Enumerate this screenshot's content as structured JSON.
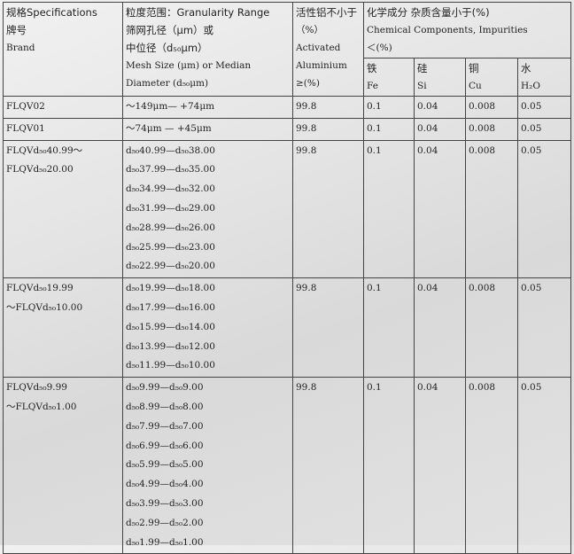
{
  "header": {
    "brand": [
      "规格Specifications",
      "牌号",
      "Brand"
    ],
    "granularity": [
      "粒度范围：Granularity Range",
      "筛网孔径（μm）或",
      "中位径（d₅₀μm）",
      "Mesh Size (μm) or Median",
      "Diameter (d₅₀μm)"
    ],
    "aluminium": [
      "活性铝不小于",
      "（%）",
      "Activated",
      "Aluminium",
      "≥(%)"
    ],
    "impurities": [
      "化学成分 杂质含量小于(%)",
      "Chemical Components, Impurities",
      "＜(%)"
    ],
    "elements": [
      [
        "铁",
        "Fe"
      ],
      [
        "硅",
        "Si"
      ],
      [
        "铜",
        "Cu"
      ],
      [
        "水",
        "H₂O"
      ]
    ]
  },
  "rows": [
    {
      "brand": [
        "FLQV02"
      ],
      "sizes": [
        "～149μm— +74μm"
      ],
      "aluminium": "99.8",
      "impurities": [
        "0.1",
        "0.04",
        "0.008",
        "0.05"
      ]
    },
    {
      "brand": [
        "FLQV01"
      ],
      "sizes": [
        "～74μm — +45μm"
      ],
      "aluminium": "99.8",
      "impurities": [
        "0.1",
        "0.04",
        "0.008",
        "0.05"
      ]
    },
    {
      "brand": [
        "FLQVd₅₀40.99～",
        "FLQVd₅₀20.00"
      ],
      "sizes": [
        "d₅₀40.99—d₅₀38.00",
        "d₅₀37.99—d₅₀35.00",
        "d₅₀34.99—d₅₀32.00",
        "d₅₀31.99—d₅₀29.00",
        "d₅₀28.99—d₅₀26.00",
        "d₅₀25.99—d₅₀23.00",
        "d₅₀22.99—d₅₀20.00"
      ],
      "aluminium": "99.8",
      "impurities": [
        "0.1",
        "0.04",
        "0.008",
        "0.05"
      ]
    },
    {
      "brand": [
        "FLQVd₅₀19.99",
        "～FLQVd₅₀10.00"
      ],
      "sizes": [
        "d₅₀19.99—d₅₀18.00",
        "d₅₀17.99—d₅₀16.00",
        "d₅₀15.99—d₅₀14.00",
        "d₅₀13.99—d₅₀12.00",
        "d₅₀11.99—d₅₀10.00"
      ],
      "aluminium": "99.8",
      "impurities": [
        "0.1",
        "0.04",
        "0.008",
        "0.05"
      ]
    },
    {
      "brand": [
        "FLQVd₅₀9.99",
        "～FLQVd₅₀1.00"
      ],
      "sizes": [
        "d₅₀9.99—d₅₀9.00",
        "d₅₀8.99—d₅₀8.00",
        "d₅₀7.99—d₅₀7.00",
        "d₅₀6.99—d₅₀6.00",
        "d₅₀5.99—d₅₀5.00",
        "d₅₀4.99—d₅₀4.00",
        "d₅₀3.99—d₅₀3.00",
        "d₅₀2.99—d₅₀2.00",
        "d₅₀1.99—d₅₀1.00"
      ],
      "aluminium": "99.8",
      "impurities": [
        "0.1",
        "0.04",
        "0.008",
        "0.05"
      ]
    }
  ]
}
